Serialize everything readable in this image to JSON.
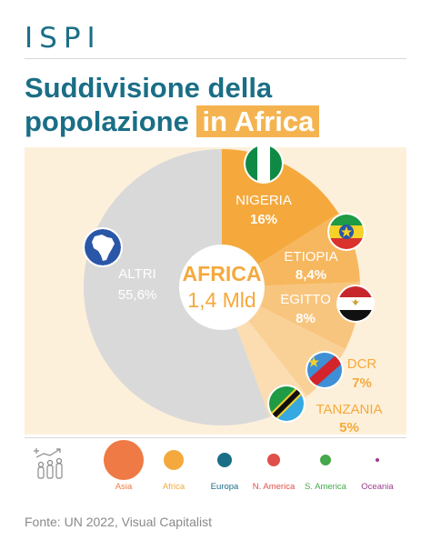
{
  "header": {
    "logo": "ISPI"
  },
  "title": {
    "line1": "Suddivisione della",
    "line2_main": "popolazione",
    "line2_highlight": "in Africa"
  },
  "center": {
    "label": "AFRICA",
    "value": "1,4 Mld"
  },
  "colors": {
    "africa": "#f5a93c",
    "altri": "#d9d9d9",
    "background": "#fdf0da",
    "title": "#1a6e86"
  },
  "chart_data": {
    "type": "pie",
    "slices": [
      {
        "name": "NIGERIA",
        "value_label": "16%",
        "value": 16,
        "color": "#f5a93c",
        "flag": "nigeria-flag"
      },
      {
        "name": "ETIOPIA",
        "value_label": "8,4%",
        "value": 8.4,
        "color": "#f6b75e",
        "flag": "ethiopia-flag"
      },
      {
        "name": "EGITTO",
        "value_label": "8%",
        "value": 8,
        "color": "#f8c57e",
        "flag": "egypt-flag"
      },
      {
        "name": "DCR",
        "value_label": "7%",
        "value": 7,
        "color": "#f9d197",
        "flag": "dcr-flag"
      },
      {
        "name": "TANZANIA",
        "value_label": "5%",
        "value": 5,
        "color": "#fbddb1",
        "flag": "tanzania-flag"
      },
      {
        "name": "ALTRI",
        "value_label": "55,6%",
        "value": 55.6,
        "color": "#d9d9d9",
        "flag": "africa-map-icon"
      }
    ]
  },
  "legend": {
    "items": [
      {
        "label": "Asia",
        "color": "#ef7a45",
        "size": 22
      },
      {
        "label": "Africa",
        "color": "#f5a93c",
        "size": 11
      },
      {
        "label": "Europa",
        "color": "#1a6e86",
        "size": 8
      },
      {
        "label": "N. America",
        "color": "#e0504a",
        "size": 7
      },
      {
        "label": "S. America",
        "color": "#45a84a",
        "size": 6
      },
      {
        "label": "Oceania",
        "color": "#9b3c8c",
        "size": 2
      }
    ]
  },
  "source": "Fonte: UN 2022, Visual Capitalist"
}
